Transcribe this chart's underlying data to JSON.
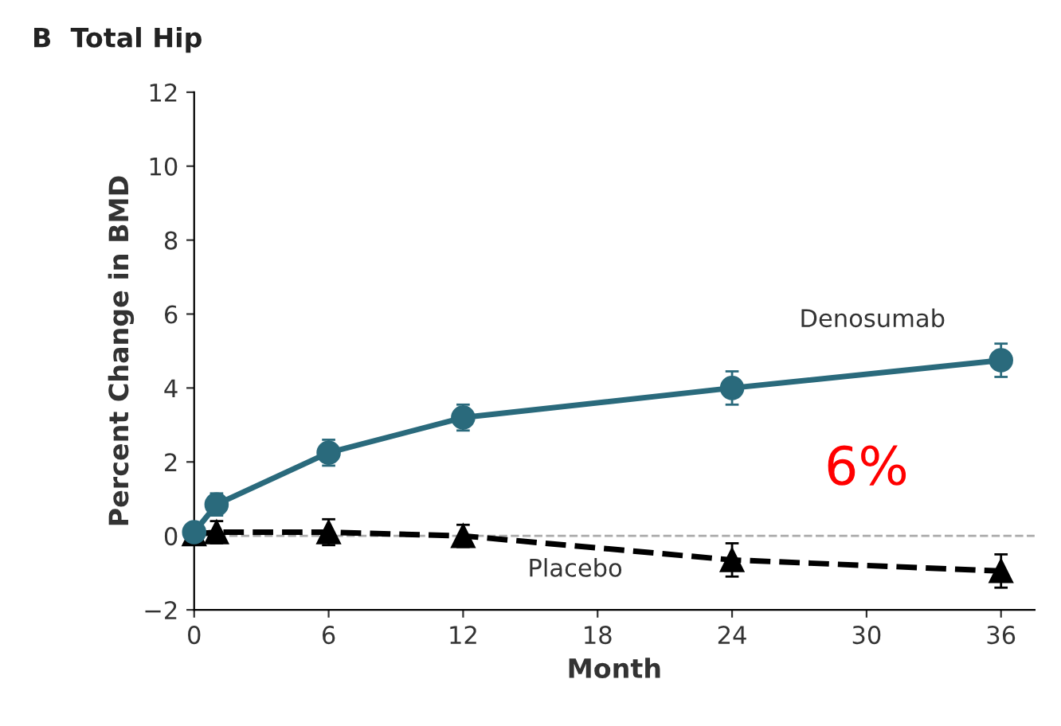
{
  "chart_data": {
    "type": "line",
    "title": "B  Total Hip",
    "xlabel": "Month",
    "ylabel": "Percent Change in BMD",
    "xlim": [
      0,
      37.5
    ],
    "xticks": [
      0,
      6,
      12,
      18,
      24,
      30,
      36
    ],
    "ylim": [
      -2,
      12
    ],
    "yticks": [
      {
        "value": -2,
        "label": "−2"
      },
      0,
      2,
      4,
      6,
      8,
      10,
      12
    ],
    "grid": false,
    "legend": false,
    "series": [
      {
        "name": "Denosumab",
        "color": "#2a6a7c",
        "marker": "circle",
        "line_style": "solid",
        "x": [
          0,
          1,
          6,
          12,
          24,
          36
        ],
        "values": [
          0.1,
          0.85,
          2.25,
          3.2,
          4.0,
          4.75
        ],
        "errors": [
          0.2,
          0.3,
          0.35,
          0.35,
          0.45,
          0.45
        ]
      },
      {
        "name": "Placebo",
        "color": "#000000",
        "marker": "triangle",
        "line_style": "dashed",
        "x": [
          0,
          1,
          6,
          12,
          24,
          36
        ],
        "values": [
          0.05,
          0.1,
          0.1,
          0.0,
          -0.65,
          -0.95
        ],
        "errors": [
          0.2,
          0.3,
          0.35,
          0.3,
          0.45,
          0.45
        ]
      }
    ],
    "ref_lines": [
      {
        "axis": "y",
        "value": 0,
        "color": "#aaaaaa",
        "line_style": "dashed"
      }
    ],
    "annotations": [
      "6%"
    ]
  }
}
